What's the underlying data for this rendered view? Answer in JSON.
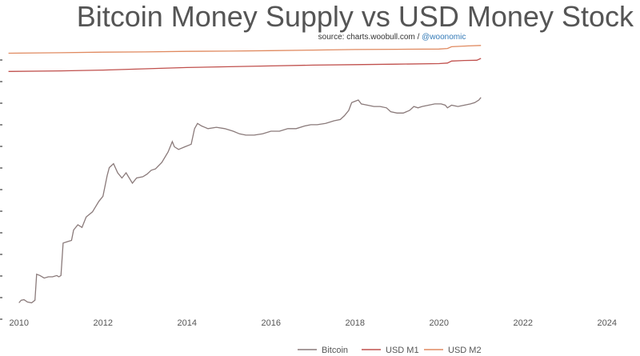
{
  "chart_data": {
    "type": "line",
    "title": "Bitcoin Money Supply vs USD Money Stock",
    "source_prefix": "source: charts.woobull.com / ",
    "source_handle": "@woonomic",
    "xlabel": "",
    "ylabel": "",
    "xlim": [
      2009.7,
      2024.5
    ],
    "ylim": [
      0,
      100
    ],
    "y_scale": "log",
    "grid": false,
    "legend_position": "bottom-right",
    "x_ticks": [
      2010,
      2012,
      2014,
      2016,
      2018,
      2020,
      2022,
      2024
    ],
    "series": [
      {
        "name": "Bitcoin",
        "color": "#8a7a7a",
        "points": [
          [
            2010.0,
            2.0
          ],
          [
            2010.05,
            3.0
          ],
          [
            2010.12,
            3.2
          ],
          [
            2010.2,
            2.3
          ],
          [
            2010.3,
            2.0
          ],
          [
            2010.38,
            3.0
          ],
          [
            2010.42,
            13.0
          ],
          [
            2010.5,
            12.5
          ],
          [
            2010.6,
            11.5
          ],
          [
            2010.7,
            12.0
          ],
          [
            2010.8,
            12.0
          ],
          [
            2010.9,
            12.5
          ],
          [
            2010.95,
            12.0
          ],
          [
            2011.0,
            12.5
          ],
          [
            2011.05,
            25.0
          ],
          [
            2011.15,
            25.5
          ],
          [
            2011.25,
            26.0
          ],
          [
            2011.3,
            30.0
          ],
          [
            2011.4,
            32.0
          ],
          [
            2011.5,
            31.0
          ],
          [
            2011.6,
            35.0
          ],
          [
            2011.75,
            37.0
          ],
          [
            2011.9,
            41.0
          ],
          [
            2012.0,
            43.0
          ],
          [
            2012.1,
            51.0
          ],
          [
            2012.15,
            54.0
          ],
          [
            2012.25,
            55.5
          ],
          [
            2012.35,
            52.0
          ],
          [
            2012.45,
            50.0
          ],
          [
            2012.55,
            52.0
          ],
          [
            2012.7,
            48.0
          ],
          [
            2012.8,
            50.0
          ],
          [
            2012.95,
            50.5
          ],
          [
            2013.05,
            51.5
          ],
          [
            2013.15,
            53.0
          ],
          [
            2013.25,
            53.5
          ],
          [
            2013.4,
            56.0
          ],
          [
            2013.55,
            60.0
          ],
          [
            2013.65,
            64.0
          ],
          [
            2013.7,
            62.0
          ],
          [
            2013.8,
            61.0
          ],
          [
            2013.95,
            62.0
          ],
          [
            2014.1,
            63.0
          ],
          [
            2014.18,
            69.0
          ],
          [
            2014.25,
            71.0
          ],
          [
            2014.35,
            70.0
          ],
          [
            2014.5,
            69.0
          ],
          [
            2014.7,
            69.5
          ],
          [
            2014.9,
            69.0
          ],
          [
            2015.1,
            68.0
          ],
          [
            2015.25,
            67.0
          ],
          [
            2015.4,
            66.5
          ],
          [
            2015.6,
            66.5
          ],
          [
            2015.8,
            67.0
          ],
          [
            2016.0,
            68.0
          ],
          [
            2016.2,
            68.0
          ],
          [
            2016.4,
            69.0
          ],
          [
            2016.6,
            69.0
          ],
          [
            2016.8,
            70.0
          ],
          [
            2016.95,
            70.5
          ],
          [
            2017.1,
            70.5
          ],
          [
            2017.3,
            71.0
          ],
          [
            2017.5,
            72.0
          ],
          [
            2017.65,
            72.5
          ],
          [
            2017.75,
            74.0
          ],
          [
            2017.85,
            76.0
          ],
          [
            2017.92,
            79.0
          ],
          [
            2018.0,
            79.5
          ],
          [
            2018.08,
            80.0
          ],
          [
            2018.15,
            78.5
          ],
          [
            2018.3,
            78.0
          ],
          [
            2018.45,
            77.5
          ],
          [
            2018.6,
            77.5
          ],
          [
            2018.75,
            77.0
          ],
          [
            2018.85,
            75.5
          ],
          [
            2019.0,
            75.0
          ],
          [
            2019.15,
            75.0
          ],
          [
            2019.3,
            76.0
          ],
          [
            2019.4,
            77.5
          ],
          [
            2019.5,
            77.0
          ],
          [
            2019.6,
            77.5
          ],
          [
            2019.75,
            78.0
          ],
          [
            2019.9,
            78.5
          ],
          [
            2020.05,
            78.5
          ],
          [
            2020.15,
            78.0
          ],
          [
            2020.2,
            77.0
          ],
          [
            2020.3,
            78.0
          ],
          [
            2020.45,
            77.5
          ],
          [
            2020.6,
            78.0
          ],
          [
            2020.75,
            78.5
          ],
          [
            2020.85,
            79.0
          ],
          [
            2020.95,
            80.0
          ],
          [
            2021.0,
            81.0
          ]
        ]
      },
      {
        "name": "USD M1",
        "color": "#c0504d",
        "points": [
          [
            2009.75,
            91.0
          ],
          [
            2011.0,
            91.2
          ],
          [
            2012.0,
            91.5
          ],
          [
            2013.0,
            92.0
          ],
          [
            2014.0,
            92.5
          ],
          [
            2015.0,
            92.8
          ],
          [
            2016.0,
            93.1
          ],
          [
            2017.0,
            93.4
          ],
          [
            2018.0,
            93.6
          ],
          [
            2019.0,
            93.8
          ],
          [
            2020.0,
            94.0
          ],
          [
            2020.2,
            94.2
          ],
          [
            2020.3,
            95.0
          ],
          [
            2020.6,
            95.2
          ],
          [
            2020.9,
            95.3
          ],
          [
            2021.0,
            96.0
          ]
        ]
      },
      {
        "name": "USD M2",
        "color": "#e08a60",
        "points": [
          [
            2009.75,
            98.0
          ],
          [
            2011.0,
            98.2
          ],
          [
            2012.0,
            98.4
          ],
          [
            2013.0,
            98.5
          ],
          [
            2014.0,
            98.7
          ],
          [
            2015.0,
            98.8
          ],
          [
            2016.0,
            99.0
          ],
          [
            2017.0,
            99.2
          ],
          [
            2018.0,
            99.4
          ],
          [
            2019.0,
            99.5
          ],
          [
            2020.0,
            99.6
          ],
          [
            2020.2,
            99.8
          ],
          [
            2020.3,
            100.5
          ],
          [
            2020.7,
            100.8
          ],
          [
            2021.0,
            101.0
          ]
        ]
      }
    ]
  }
}
